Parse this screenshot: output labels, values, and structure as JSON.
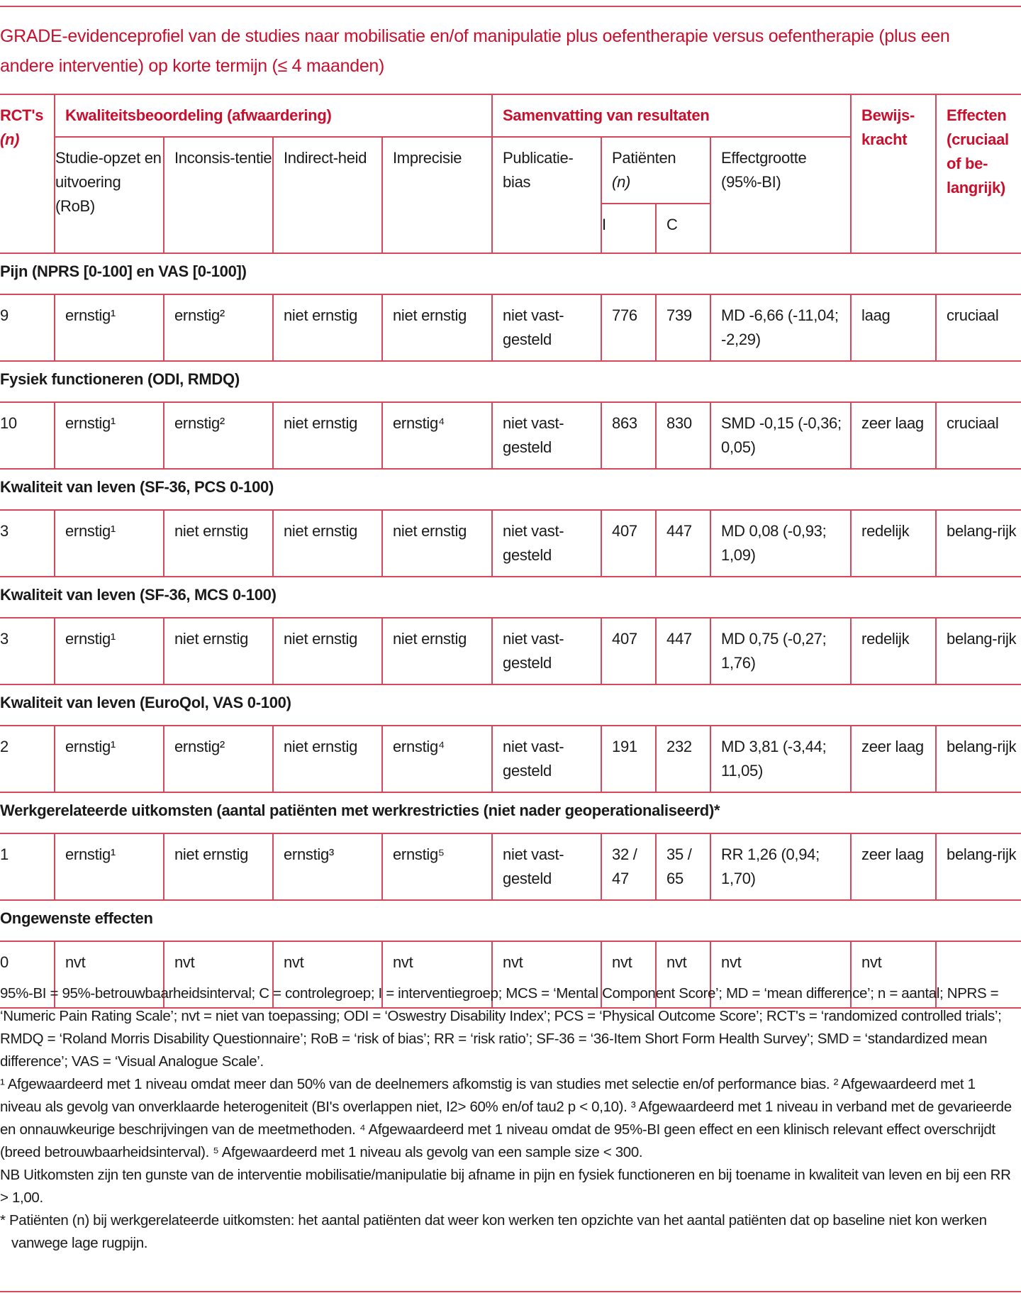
{
  "title": "GRADE-evidenceprofiel van de studies naar mobilisatie en/of manipulatie plus oefentherapie versus oefentherapie (plus een andere interventie) op korte termijn (≤ 4 maanden)",
  "colors": {
    "accent": "#c8102e",
    "rule": "#d4485c",
    "text": "#1a1a1a"
  },
  "header": {
    "rcts": "RCT's",
    "rcts_n": "(n)",
    "quality": "Kwaliteitsbeoordeling (afwaardering)",
    "summary": "Samenvatting van resultaten",
    "evidence": "Bewijs-kracht",
    "effects": "Effecten (cruciaal of be-langrijk)",
    "study_design": "Studie-opzet en uitvoering (RoB)",
    "inconsistency": "Inconsis-tentie",
    "indirectness": "Indirect-heid",
    "imprecision": "Imprecisie",
    "publication_bias": "Publicatie-bias",
    "patients": "Patiënten",
    "patients_n": "(n)",
    "effect_size": "Effectgrootte (95%-BI)",
    "i": "I",
    "c": "C"
  },
  "sections": [
    {
      "title": "Pijn (NPRS [0-100] en VAS [0-100])",
      "row": [
        "9",
        "ernstig¹",
        "ernstig²",
        "niet ernstig",
        "niet ernstig",
        "niet vast-gesteld",
        "776",
        "739",
        "MD -6,66 (-11,04; -2,29)",
        "laag",
        "cruciaal"
      ]
    },
    {
      "title": "Fysiek functioneren (ODI, RMDQ)",
      "row": [
        "10",
        "ernstig¹",
        "ernstig²",
        "niet ernstig",
        "ernstig⁴",
        "niet vast-gesteld",
        "863",
        "830",
        "SMD -0,15 (-0,36; 0,05)",
        "zeer laag",
        "cruciaal"
      ]
    },
    {
      "title": "Kwaliteit van leven (SF-36, PCS 0-100)",
      "row": [
        "3",
        "ernstig¹",
        "niet ernstig",
        "niet ernstig",
        "niet ernstig",
        "niet vast-gesteld",
        "407",
        "447",
        "MD 0,08 (-0,93; 1,09)",
        "redelijk",
        "belang-rijk"
      ]
    },
    {
      "title": "Kwaliteit van leven (SF-36, MCS 0-100)",
      "row": [
        "3",
        "ernstig¹",
        "niet ernstig",
        "niet ernstig",
        "niet ernstig",
        "niet vast-gesteld",
        "407",
        "447",
        "MD 0,75 (-0,27; 1,76)",
        "redelijk",
        "belang-rijk"
      ]
    },
    {
      "title": "Kwaliteit van leven (EuroQol, VAS 0-100)",
      "row": [
        "2",
        "ernstig¹",
        "ernstig²",
        "niet ernstig",
        "ernstig⁴",
        "niet vast-gesteld",
        "191",
        "232",
        "MD 3,81 (-3,44; 11,05)",
        "zeer laag",
        "belang-rijk"
      ]
    },
    {
      "title": "Werkgerelateerde uitkomsten (aantal patiënten met werkrestricties (niet nader geoperationaliseerd)*",
      "row": [
        "1",
        "ernstig¹",
        "niet ernstig",
        "ernstig³",
        "ernstig⁵",
        "niet vast-gesteld",
        "32 / 47",
        "35 / 65",
        "RR 1,26 (0,94; 1,70)",
        "zeer laag",
        "belang-rijk"
      ]
    },
    {
      "title": "Ongewenste effecten",
      "row": [
        "0",
        "nvt",
        "nvt",
        "nvt",
        "nvt",
        "nvt",
        "nvt",
        "nvt",
        "nvt",
        "nvt",
        ""
      ]
    }
  ],
  "footnotes": {
    "abbreviations": "95%-BI = 95%-betrouwbaarheidsinterval; C = controlegroep; I = interventiegroep; MCS = ‘Mental Component Score’; MD = ‘mean difference’; n = aantal; NPRS = ‘Numeric Pain Rating Scale’; nvt = niet van toepassing; ODI = ‘Oswestry Disability Index’; PCS = ‘Physical Outcome Score’; RCT's = ‘randomized controlled trials’; RMDQ = ‘Roland Morris Disability Questionnaire’; RoB = ‘risk of bias’; RR = ‘risk ratio’; SF-36 = ‘36-Item Short Form Health Survey’; SMD = ‘standardized mean difference’; VAS = ‘Visual Analogue Scale’.",
    "notes": "¹ Afgewaardeerd met 1 niveau omdat meer dan 50% van de deelnemers afkomstig is van studies met selectie en/of performance bias. ² Afgewaardeerd met 1 niveau als gevolg van onverklaarde heterogeniteit (BI's overlappen niet, I2> 60% en/of tau2 p < 0,10). ³ Afgewaardeerd met 1 niveau in verband met de gevarieerde en onnauwkeurige beschrijvingen van de meetmethoden. ⁴ Afgewaardeerd met 1 niveau omdat de 95%-BI geen effect en een klinisch relevant effect overschrijdt (breed betrouwbaarheidsinterval). ⁵ Afgewaardeerd met 1 niveau als gevolg van een sample size < 300.",
    "nb": "NB Uitkomsten zijn ten gunste van de interventie mobilisatie/manipulatie bij afname in pijn en fysiek functioneren en bij toename in kwaliteit van leven en bij een RR > 1,00.",
    "asterisk": "* Patiënten (n) bij werkgerelateerde uitkomsten: het aantal patiënten dat weer kon werken ten opzichte van het aantal patiënten dat op baseline niet kon werken vanwege lage rugpijn."
  }
}
